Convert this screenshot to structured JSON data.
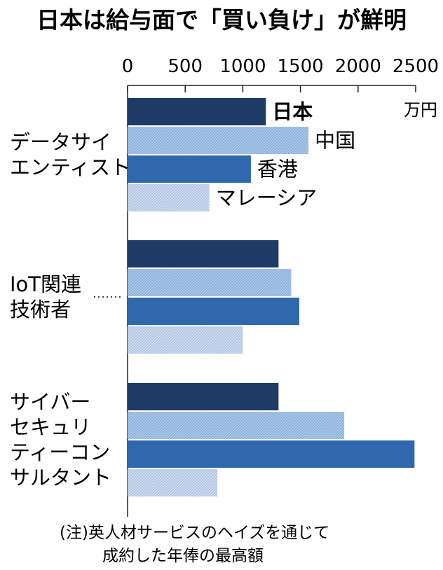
{
  "chart_data": {
    "type": "bar",
    "orientation": "horizontal",
    "title": "日本は給与面で「買い負け」が鮮明",
    "unit": "万円",
    "xlim": [
      0,
      2500
    ],
    "xticks": [
      0,
      500,
      1000,
      1500,
      2000,
      2500
    ],
    "grid": false,
    "categories": [
      [
        "データサイ",
        "エンティスト"
      ],
      [
        "IoT関連",
        "技術者"
      ],
      [
        "サイバー",
        "セキュリ",
        "ティーコン",
        "サルタント"
      ]
    ],
    "series": [
      {
        "name": "日本",
        "values": [
          1200,
          1310,
          1310
        ],
        "color": "#1e3a66",
        "pattern": "solid"
      },
      {
        "name": "中国",
        "values": [
          1570,
          1420,
          1880
        ],
        "color": "#8fb4dc",
        "pattern": "hatch"
      },
      {
        "name": "香港",
        "values": [
          1070,
          1490,
          2490
        ],
        "color": "#2f68ad",
        "pattern": "solid"
      },
      {
        "name": "マレーシア",
        "values": [
          710,
          1000,
          780
        ],
        "color": "#b9cbe6",
        "pattern": "hatch"
      }
    ],
    "legend_placement": "labels at end of first group's bars"
  },
  "note": {
    "line1": "(注)英人材サービスのヘイズを通じて",
    "line2": "成約した年俸の最高額"
  }
}
